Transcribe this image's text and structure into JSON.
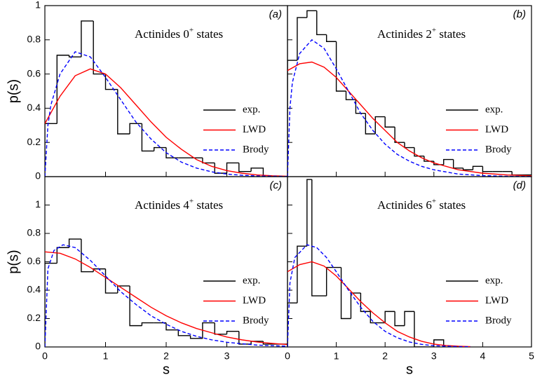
{
  "chart_data": [
    {
      "type": "histogram",
      "label": "(a)",
      "title": "Actinides  0",
      "title_sup": "+",
      "title_end": " states",
      "ylabel": "p(s)",
      "xlim": [
        0,
        4
      ],
      "ylim": [
        0,
        1
      ],
      "xticks": [
        0,
        1,
        2,
        3
      ],
      "yticks": [
        0,
        0.2,
        0.4,
        0.6,
        0.8,
        1
      ],
      "show_xtick_labels": false,
      "show_ytick_labels": true,
      "histogram": {
        "name": "exp.",
        "color": "#000000",
        "bins": [
          0,
          0.2,
          0.4,
          0.6,
          0.8,
          1.0,
          1.2,
          1.4,
          1.6,
          1.8,
          2.0,
          2.2,
          2.4,
          2.6,
          2.8,
          3.0,
          3.2,
          3.4,
          3.6
        ],
        "counts": [
          0.31,
          0.71,
          0.7,
          0.91,
          0.6,
          0.51,
          0.25,
          0.31,
          0.15,
          0.17,
          0.11,
          0.11,
          0.11,
          0.08,
          0.02,
          0.08,
          0.03,
          0.05
        ]
      },
      "series": [
        {
          "name": "LWD",
          "color": "#ff0000",
          "dash": false,
          "x": [
            0,
            0.25,
            0.5,
            0.75,
            1,
            1.25,
            1.5,
            1.75,
            2,
            2.25,
            2.5,
            2.75,
            3,
            3.25,
            3.5,
            3.75,
            4
          ],
          "values": [
            0.31,
            0.47,
            0.59,
            0.63,
            0.6,
            0.52,
            0.42,
            0.32,
            0.23,
            0.16,
            0.1,
            0.06,
            0.035,
            0.02,
            0.01,
            0.005,
            0.002
          ]
        },
        {
          "name": "Brody",
          "color": "#0000ff",
          "dash": true,
          "x": [
            0,
            0.05,
            0.1,
            0.25,
            0.5,
            0.75,
            1,
            1.25,
            1.5,
            1.75,
            2,
            2.25,
            2.5,
            2.75,
            3,
            3.25,
            3.5,
            4
          ],
          "values": [
            0,
            0.3,
            0.42,
            0.6,
            0.73,
            0.7,
            0.58,
            0.45,
            0.32,
            0.22,
            0.14,
            0.085,
            0.05,
            0.028,
            0.015,
            0.008,
            0.004,
            0.001
          ]
        }
      ]
    },
    {
      "type": "histogram",
      "label": "(b)",
      "title": "Actinides  2",
      "title_sup": "+",
      "title_end": " states",
      "xlim": [
        0,
        5
      ],
      "ylim": [
        0,
        1
      ],
      "xticks": [
        0,
        1,
        2,
        3,
        4,
        5
      ],
      "yticks": [
        0,
        0.2,
        0.4,
        0.6,
        0.8,
        1
      ],
      "show_xtick_labels": false,
      "show_ytick_labels": false,
      "histogram": {
        "name": "exp.",
        "color": "#000000",
        "bins": [
          0,
          0.2,
          0.4,
          0.6,
          0.8,
          1.0,
          1.2,
          1.4,
          1.6,
          1.8,
          2.0,
          2.2,
          2.4,
          2.6,
          2.8,
          3.0,
          3.2,
          3.4,
          3.6,
          3.8,
          4.0,
          4.2,
          4.4,
          4.6,
          4.8,
          5.0
        ],
        "counts": [
          0.68,
          0.93,
          0.97,
          0.83,
          0.79,
          0.5,
          0.45,
          0.37,
          0.25,
          0.35,
          0.29,
          0.2,
          0.17,
          0.12,
          0.09,
          0.07,
          0.1,
          0.05,
          0.04,
          0.06,
          0.03,
          0.03,
          0.03,
          0.01,
          0.01
        ]
      },
      "series": [
        {
          "name": "LWD",
          "color": "#ff0000",
          "dash": false,
          "x": [
            0,
            0.25,
            0.5,
            0.75,
            1,
            1.25,
            1.5,
            1.75,
            2,
            2.25,
            2.5,
            2.75,
            3,
            3.5,
            4,
            4.5,
            5
          ],
          "values": [
            0.62,
            0.66,
            0.67,
            0.64,
            0.58,
            0.5,
            0.42,
            0.34,
            0.27,
            0.2,
            0.15,
            0.11,
            0.08,
            0.04,
            0.02,
            0.01,
            0.005
          ]
        },
        {
          "name": "Brody",
          "color": "#0000ff",
          "dash": true,
          "x": [
            0,
            0.05,
            0.1,
            0.25,
            0.5,
            0.75,
            1,
            1.25,
            1.5,
            1.75,
            2,
            2.25,
            2.5,
            2.75,
            3,
            3.5,
            4,
            4.5,
            5
          ],
          "values": [
            0,
            0.4,
            0.55,
            0.72,
            0.8,
            0.75,
            0.63,
            0.5,
            0.37,
            0.27,
            0.19,
            0.13,
            0.09,
            0.06,
            0.04,
            0.015,
            0.006,
            0.002,
            0.001
          ]
        }
      ]
    },
    {
      "type": "histogram",
      "label": "(c)",
      "title": "Actinides  4",
      "title_sup": "+",
      "title_end": " states",
      "xlabel": "s",
      "ylabel": "p(s)",
      "xlim": [
        0,
        4
      ],
      "ylim": [
        0,
        1.2
      ],
      "xticks": [
        0,
        1,
        2,
        3
      ],
      "yticks": [
        0,
        0.2,
        0.4,
        0.6,
        0.8,
        1
      ],
      "show_xtick_labels": true,
      "show_ytick_labels": true,
      "histogram": {
        "name": "exp.",
        "color": "#000000",
        "bins": [
          0,
          0.2,
          0.4,
          0.6,
          0.8,
          1.0,
          1.2,
          1.4,
          1.6,
          1.8,
          2.0,
          2.2,
          2.4,
          2.6,
          2.8,
          3.0,
          3.2,
          3.4,
          3.6,
          3.8,
          4.0
        ],
        "counts": [
          0.59,
          0.7,
          0.76,
          0.53,
          0.55,
          0.38,
          0.43,
          0.15,
          0.17,
          0.17,
          0.12,
          0.08,
          0.06,
          0.17,
          0.09,
          0.11,
          0.02,
          0.04,
          0.02,
          0.02
        ]
      },
      "series": [
        {
          "name": "LWD",
          "color": "#ff0000",
          "dash": false,
          "x": [
            0,
            0.25,
            0.5,
            0.75,
            1,
            1.25,
            1.5,
            1.75,
            2,
            2.25,
            2.5,
            2.75,
            3,
            3.25,
            3.5,
            3.75,
            4
          ],
          "values": [
            0.67,
            0.66,
            0.62,
            0.56,
            0.49,
            0.42,
            0.35,
            0.28,
            0.22,
            0.17,
            0.13,
            0.1,
            0.07,
            0.05,
            0.035,
            0.025,
            0.017
          ]
        },
        {
          "name": "Brody",
          "color": "#0000ff",
          "dash": true,
          "x": [
            0,
            0.05,
            0.15,
            0.3,
            0.5,
            0.75,
            1,
            1.25,
            1.5,
            1.75,
            2,
            2.25,
            2.5,
            2.75,
            3,
            3.5,
            4
          ],
          "values": [
            0,
            0.55,
            0.68,
            0.72,
            0.7,
            0.61,
            0.5,
            0.39,
            0.3,
            0.22,
            0.16,
            0.11,
            0.075,
            0.05,
            0.033,
            0.013,
            0.005
          ]
        }
      ]
    },
    {
      "type": "histogram",
      "label": "(d)",
      "title": "Actinides  6",
      "title_sup": "+",
      "title_end": " states",
      "xlabel": "s",
      "xlim": [
        0,
        5
      ],
      "ylim": [
        0,
        1.2
      ],
      "xticks": [
        0,
        1,
        2,
        3,
        4,
        5
      ],
      "yticks": [
        0,
        0.2,
        0.4,
        0.6,
        0.8,
        1
      ],
      "show_xtick_labels": true,
      "show_ytick_labels": false,
      "histogram": {
        "name": "exp.",
        "color": "#000000",
        "bins": [
          0,
          0.2,
          0.4,
          0.5,
          0.8,
          1.1,
          1.3,
          1.5,
          1.7,
          2.0,
          2.2,
          2.4,
          2.6,
          3.0,
          3.2
        ],
        "counts": [
          0.31,
          0.71,
          1.18,
          0.36,
          0.56,
          0.2,
          0.38,
          0.25,
          0.17,
          0.25,
          0.15,
          0.25,
          0,
          0.05
        ]
      },
      "series": [
        {
          "name": "LWD",
          "color": "#ff0000",
          "dash": false,
          "x": [
            0,
            0.25,
            0.5,
            0.75,
            1,
            1.25,
            1.5,
            1.75,
            2,
            2.25,
            2.5,
            2.75,
            3,
            3.25,
            3.5,
            3.75
          ],
          "values": [
            0.53,
            0.58,
            0.6,
            0.57,
            0.5,
            0.41,
            0.32,
            0.24,
            0.17,
            0.11,
            0.07,
            0.04,
            0.02,
            0.01,
            0.005,
            0.002
          ]
        },
        {
          "name": "Brody",
          "color": "#0000ff",
          "dash": true,
          "x": [
            0,
            0.05,
            0.15,
            0.4,
            0.6,
            0.8,
            1,
            1.25,
            1.5,
            1.75,
            2,
            2.25,
            2.5,
            2.75,
            3,
            3.5,
            3.75
          ],
          "values": [
            0,
            0.45,
            0.63,
            0.72,
            0.7,
            0.63,
            0.53,
            0.4,
            0.28,
            0.18,
            0.11,
            0.065,
            0.035,
            0.018,
            0.009,
            0.002,
            0.001
          ]
        }
      ]
    }
  ]
}
